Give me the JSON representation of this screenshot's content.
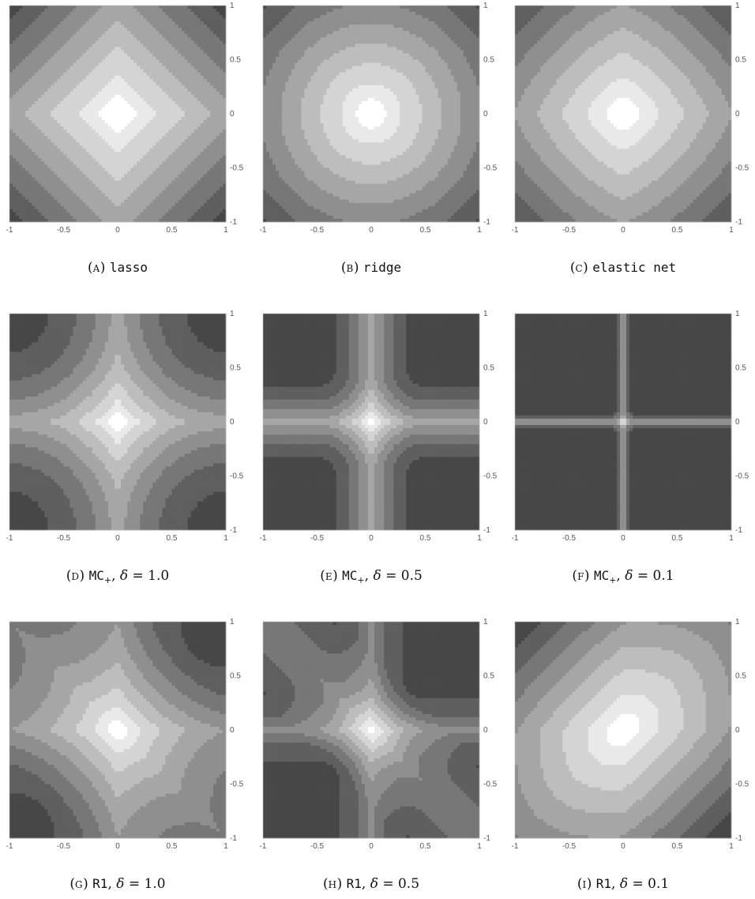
{
  "figure": {
    "panels": [
      {
        "id": "A",
        "label_letter": "A",
        "method": "lasso",
        "delta": null,
        "family": "lasso"
      },
      {
        "id": "B",
        "label_letter": "B",
        "method": "ridge",
        "delta": null,
        "family": "ridge"
      },
      {
        "id": "C",
        "label_letter": "C",
        "method": "elastic net",
        "delta": null,
        "family": "enet"
      },
      {
        "id": "D",
        "label_letter": "D",
        "method": "MC",
        "method_subscript": "+",
        "delta": "1.0",
        "family": "mcp"
      },
      {
        "id": "E",
        "label_letter": "E",
        "method": "MC",
        "method_subscript": "+",
        "delta": "0.5",
        "family": "mcp"
      },
      {
        "id": "F",
        "label_letter": "F",
        "method": "MC",
        "method_subscript": "+",
        "delta": "0.1",
        "family": "mcp"
      },
      {
        "id": "G",
        "label_letter": "G",
        "method": "R1",
        "delta": "1.0",
        "family": "r1"
      },
      {
        "id": "H",
        "label_letter": "H",
        "method": "R1",
        "delta": "0.5",
        "family": "r1"
      },
      {
        "id": "I",
        "label_letter": "I",
        "method": "R1",
        "delta": "0.1",
        "family": "r1"
      }
    ],
    "delta_symbol": "δ",
    "equals": "="
  },
  "chart_data": {
    "type": "heatmap",
    "description_free": true,
    "x_ticks": [
      "-1",
      "-0.5",
      "0",
      "0.5",
      "1"
    ],
    "y_ticks": [
      "1",
      "0.5",
      "0",
      "-0.5",
      "-1"
    ],
    "xlim": [
      -1,
      1
    ],
    "ylim": [
      -1,
      1
    ],
    "grid": false,
    "colormap": [
      "#ffffff",
      "#e9e9e9",
      "#d4d4d4",
      "#bdbdbd",
      "#a6a6a6",
      "#8f8f8f",
      "#777777",
      "#5f5f5f",
      "#474747"
    ]
  }
}
